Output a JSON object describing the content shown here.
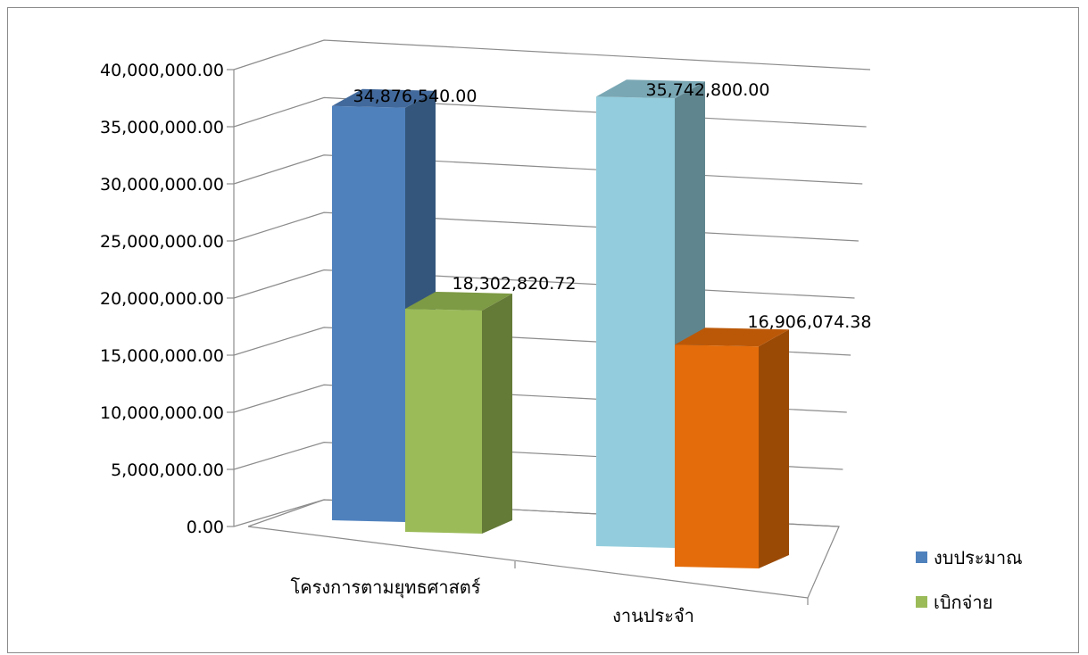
{
  "chart_data": {
    "type": "bar",
    "style": "3d-clustered-column",
    "categories": [
      "โครงการตามยุทธศาสตร์",
      "งานประจำ"
    ],
    "series": [
      {
        "name": "งบประมาณ",
        "values": [
          34876540.0,
          35742800.0
        ]
      },
      {
        "name": "เบิกจ่าย",
        "values": [
          18302820.72,
          16906074.38
        ]
      }
    ],
    "data_labels": [
      [
        "34,876,540.00",
        "35,742,800.00"
      ],
      [
        "18,302,820.72",
        "16,906,074.38"
      ]
    ],
    "y_ticks": [
      "0.00",
      "5,000,000.00",
      "10,000,000.00",
      "15,000,000.00",
      "20,000,000.00",
      "25,000,000.00",
      "30,000,000.00",
      "35,000,000.00",
      "40,000,000.00"
    ],
    "ylim": [
      0,
      40000000
    ],
    "title": "",
    "xlabel": "",
    "ylabel": "",
    "grid": true,
    "legend_position": "right",
    "bar_colors": [
      [
        "#4f81bd",
        "#93cddd"
      ],
      [
        "#9bbb59",
        "#e46c0a"
      ]
    ],
    "bar_side_colors": [
      [
        "#34567c",
        "#5f858f"
      ],
      [
        "#647a37",
        "#9b4a06"
      ]
    ],
    "bar_top_colors": [
      [
        "#42699b",
        "#7aa7b4"
      ],
      [
        "#7d9a44",
        "#bb5808"
      ]
    ],
    "legend_colors": [
      "#4f81bd",
      "#9bbb59"
    ],
    "grid_color": "#8c8c8c"
  }
}
